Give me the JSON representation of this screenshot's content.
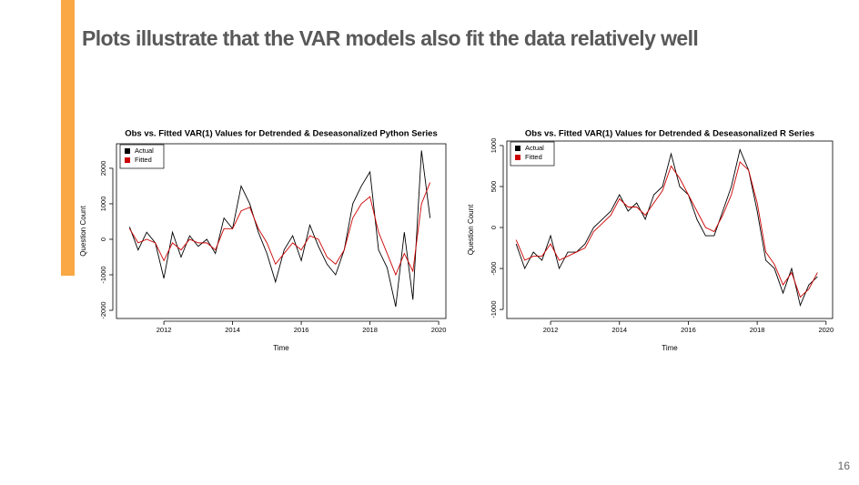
{
  "title": "Plots illustrate that the VAR models also fit the data relatively well",
  "page_number": "16",
  "chart_data": [
    {
      "type": "line",
      "title": "Obs vs. Fitted VAR(1) Values for Detrended & Deseasonalized Python Series",
      "x_label": "Time",
      "y_label": "Question Count",
      "x": [
        2011.0,
        2011.25,
        2011.5,
        2011.75,
        2012.0,
        2012.25,
        2012.5,
        2012.75,
        2013.0,
        2013.25,
        2013.5,
        2013.75,
        2014.0,
        2014.25,
        2014.5,
        2014.75,
        2015.0,
        2015.25,
        2015.5,
        2015.75,
        2016.0,
        2016.25,
        2016.5,
        2016.75,
        2017.0,
        2017.25,
        2017.5,
        2017.75,
        2018.0,
        2018.25,
        2018.5,
        2018.75,
        2019.0,
        2019.25,
        2019.5,
        2019.75
      ],
      "series": [
        {
          "name": "Actual",
          "color": "#000000",
          "values": [
            350,
            -300,
            200,
            -100,
            -1100,
            200,
            -500,
            100,
            -200,
            0,
            -400,
            600,
            300,
            1500,
            1000,
            200,
            -400,
            -1200,
            -300,
            100,
            -600,
            400,
            -200,
            -700,
            -1000,
            -300,
            1000,
            1500,
            1900,
            -300,
            -800,
            -1900,
            200,
            -1700,
            2500,
            600
          ]
        },
        {
          "name": "Fitted",
          "color": "#cc0000",
          "values": [
            300,
            -100,
            0,
            -100,
            -600,
            -100,
            -300,
            0,
            -100,
            -100,
            -300,
            300,
            300,
            800,
            900,
            300,
            -100,
            -700,
            -400,
            -100,
            -300,
            100,
            0,
            -500,
            -700,
            -300,
            600,
            1000,
            1200,
            200,
            -400,
            -1000,
            -400,
            -900,
            1000,
            1600
          ]
        }
      ],
      "xlim": [
        2010.62,
        2020.21
      ],
      "ylim": [
        -2230,
        2690
      ],
      "xticks": [
        2012,
        2014,
        2016,
        2018,
        2020
      ],
      "yticks": [
        -2000,
        -1000,
        0,
        1000,
        2000
      ],
      "legend": "top-left"
    },
    {
      "type": "line",
      "title": "Obs vs. Fitted VAR(1) Values for Detrended & Deseasonalized R Series",
      "x_label": "Time",
      "y_label": "Question Count",
      "x": [
        2011.0,
        2011.25,
        2011.5,
        2011.75,
        2012.0,
        2012.25,
        2012.5,
        2012.75,
        2013.0,
        2013.25,
        2013.5,
        2013.75,
        2014.0,
        2014.25,
        2014.5,
        2014.75,
        2015.0,
        2015.25,
        2015.5,
        2015.75,
        2016.0,
        2016.25,
        2016.5,
        2016.75,
        2017.0,
        2017.25,
        2017.5,
        2017.75,
        2018.0,
        2018.25,
        2018.5,
        2018.75,
        2019.0,
        2019.25,
        2019.5,
        2019.75
      ],
      "series": [
        {
          "name": "Actual",
          "color": "#000000",
          "values": [
            -200,
            -500,
            -300,
            -400,
            -100,
            -500,
            -300,
            -300,
            -200,
            0,
            100,
            200,
            400,
            200,
            300,
            100,
            400,
            500,
            900,
            500,
            400,
            100,
            -100,
            -100,
            200,
            500,
            950,
            700,
            200,
            -400,
            -500,
            -800,
            -500,
            -950,
            -700,
            -600
          ]
        },
        {
          "name": "Fitted",
          "color": "#cc0000",
          "values": [
            -150,
            -400,
            -350,
            -350,
            -200,
            -400,
            -350,
            -300,
            -250,
            -50,
            50,
            150,
            350,
            250,
            250,
            150,
            300,
            450,
            750,
            600,
            400,
            200,
            0,
            -50,
            150,
            400,
            800,
            700,
            300,
            -300,
            -450,
            -700,
            -550,
            -850,
            -750,
            -550
          ]
        }
      ],
      "xlim": [
        2010.73,
        2020.19
      ],
      "ylim": [
        -1110,
        1055
      ],
      "xticks": [
        2012,
        2014,
        2016,
        2018,
        2020
      ],
      "yticks": [
        -1000,
        -500,
        0,
        500,
        1000
      ],
      "legend": "top-left"
    }
  ]
}
